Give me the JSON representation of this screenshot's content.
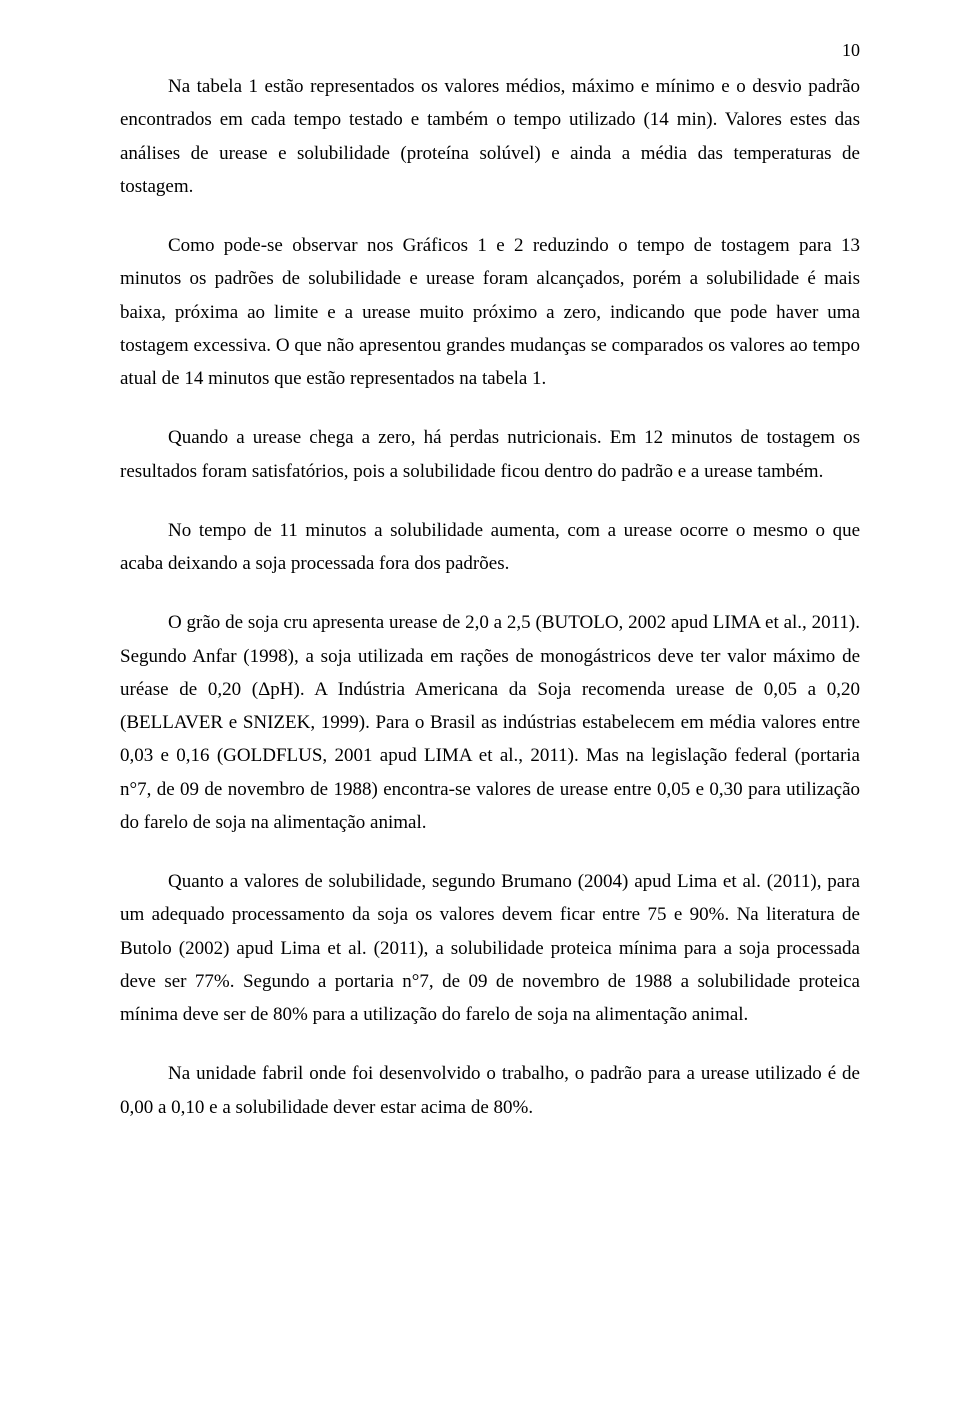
{
  "page_number": "10",
  "paragraphs": {
    "p1": "Na tabela 1 estão representados os valores médios, máximo e mínimo e o desvio padrão encontrados em cada tempo testado e também o tempo utilizado (14 min). Valores estes das análises de urease e solubilidade (proteína solúvel) e ainda a média das temperaturas de tostagem.",
    "p2": "Como pode-se observar nos Gráficos 1 e 2 reduzindo o tempo de tostagem para 13 minutos os padrões de solubilidade e urease foram alcançados, porém a solubilidade é mais baixa, próxima ao limite e a urease muito próximo a zero, indicando que pode haver uma tostagem excessiva.  O que não apresentou grandes mudanças se comparados os valores ao tempo atual de 14 minutos que estão representados na tabela 1.",
    "p3": "Quando a urease chega a zero, há perdas nutricionais. Em 12 minutos de tostagem os resultados foram satisfatórios, pois a solubilidade ficou dentro do padrão e a urease também.",
    "p4": "No tempo de 11 minutos a solubilidade aumenta, com a urease ocorre o mesmo o que acaba deixando a soja processada fora dos padrões.",
    "p5": "O grão de soja cru apresenta urease de 2,0 a 2,5 (BUTOLO, 2002 apud LIMA et al., 2011). Segundo Anfar (1998), a soja utilizada em rações de monogástricos deve ter valor máximo de uréase de 0,20 (ΔpH). A Indústria Americana da Soja recomenda urease de 0,05 a 0,20 (BELLAVER e SNIZEK, 1999). Para o Brasil as indústrias estabelecem em média valores entre 0,03 e 0,16 (GOLDFLUS, 2001 apud LIMA et al., 2011). Mas na legislação federal (portaria n°7, de 09 de novembro de 1988) encontra-se valores de urease entre 0,05 e 0,30 para utilização do farelo de soja na alimentação animal.",
    "p6": "Quanto a valores de solubilidade, segundo Brumano (2004) apud Lima et al. (2011), para um adequado processamento da soja os valores devem ficar entre 75 e 90%. Na literatura de Butolo (2002) apud Lima et al. (2011), a solubilidade proteica mínima para a soja processada deve ser 77%. Segundo a portaria n°7, de 09 de novembro de 1988 a solubilidade proteica mínima deve ser de 80% para a utilização do farelo de soja na alimentação animal.",
    "p7": "Na unidade fabril onde foi desenvolvido o trabalho, o padrão para a urease utilizado é de 0,00 a 0,10 e a solubilidade dever estar acima de 80%."
  }
}
